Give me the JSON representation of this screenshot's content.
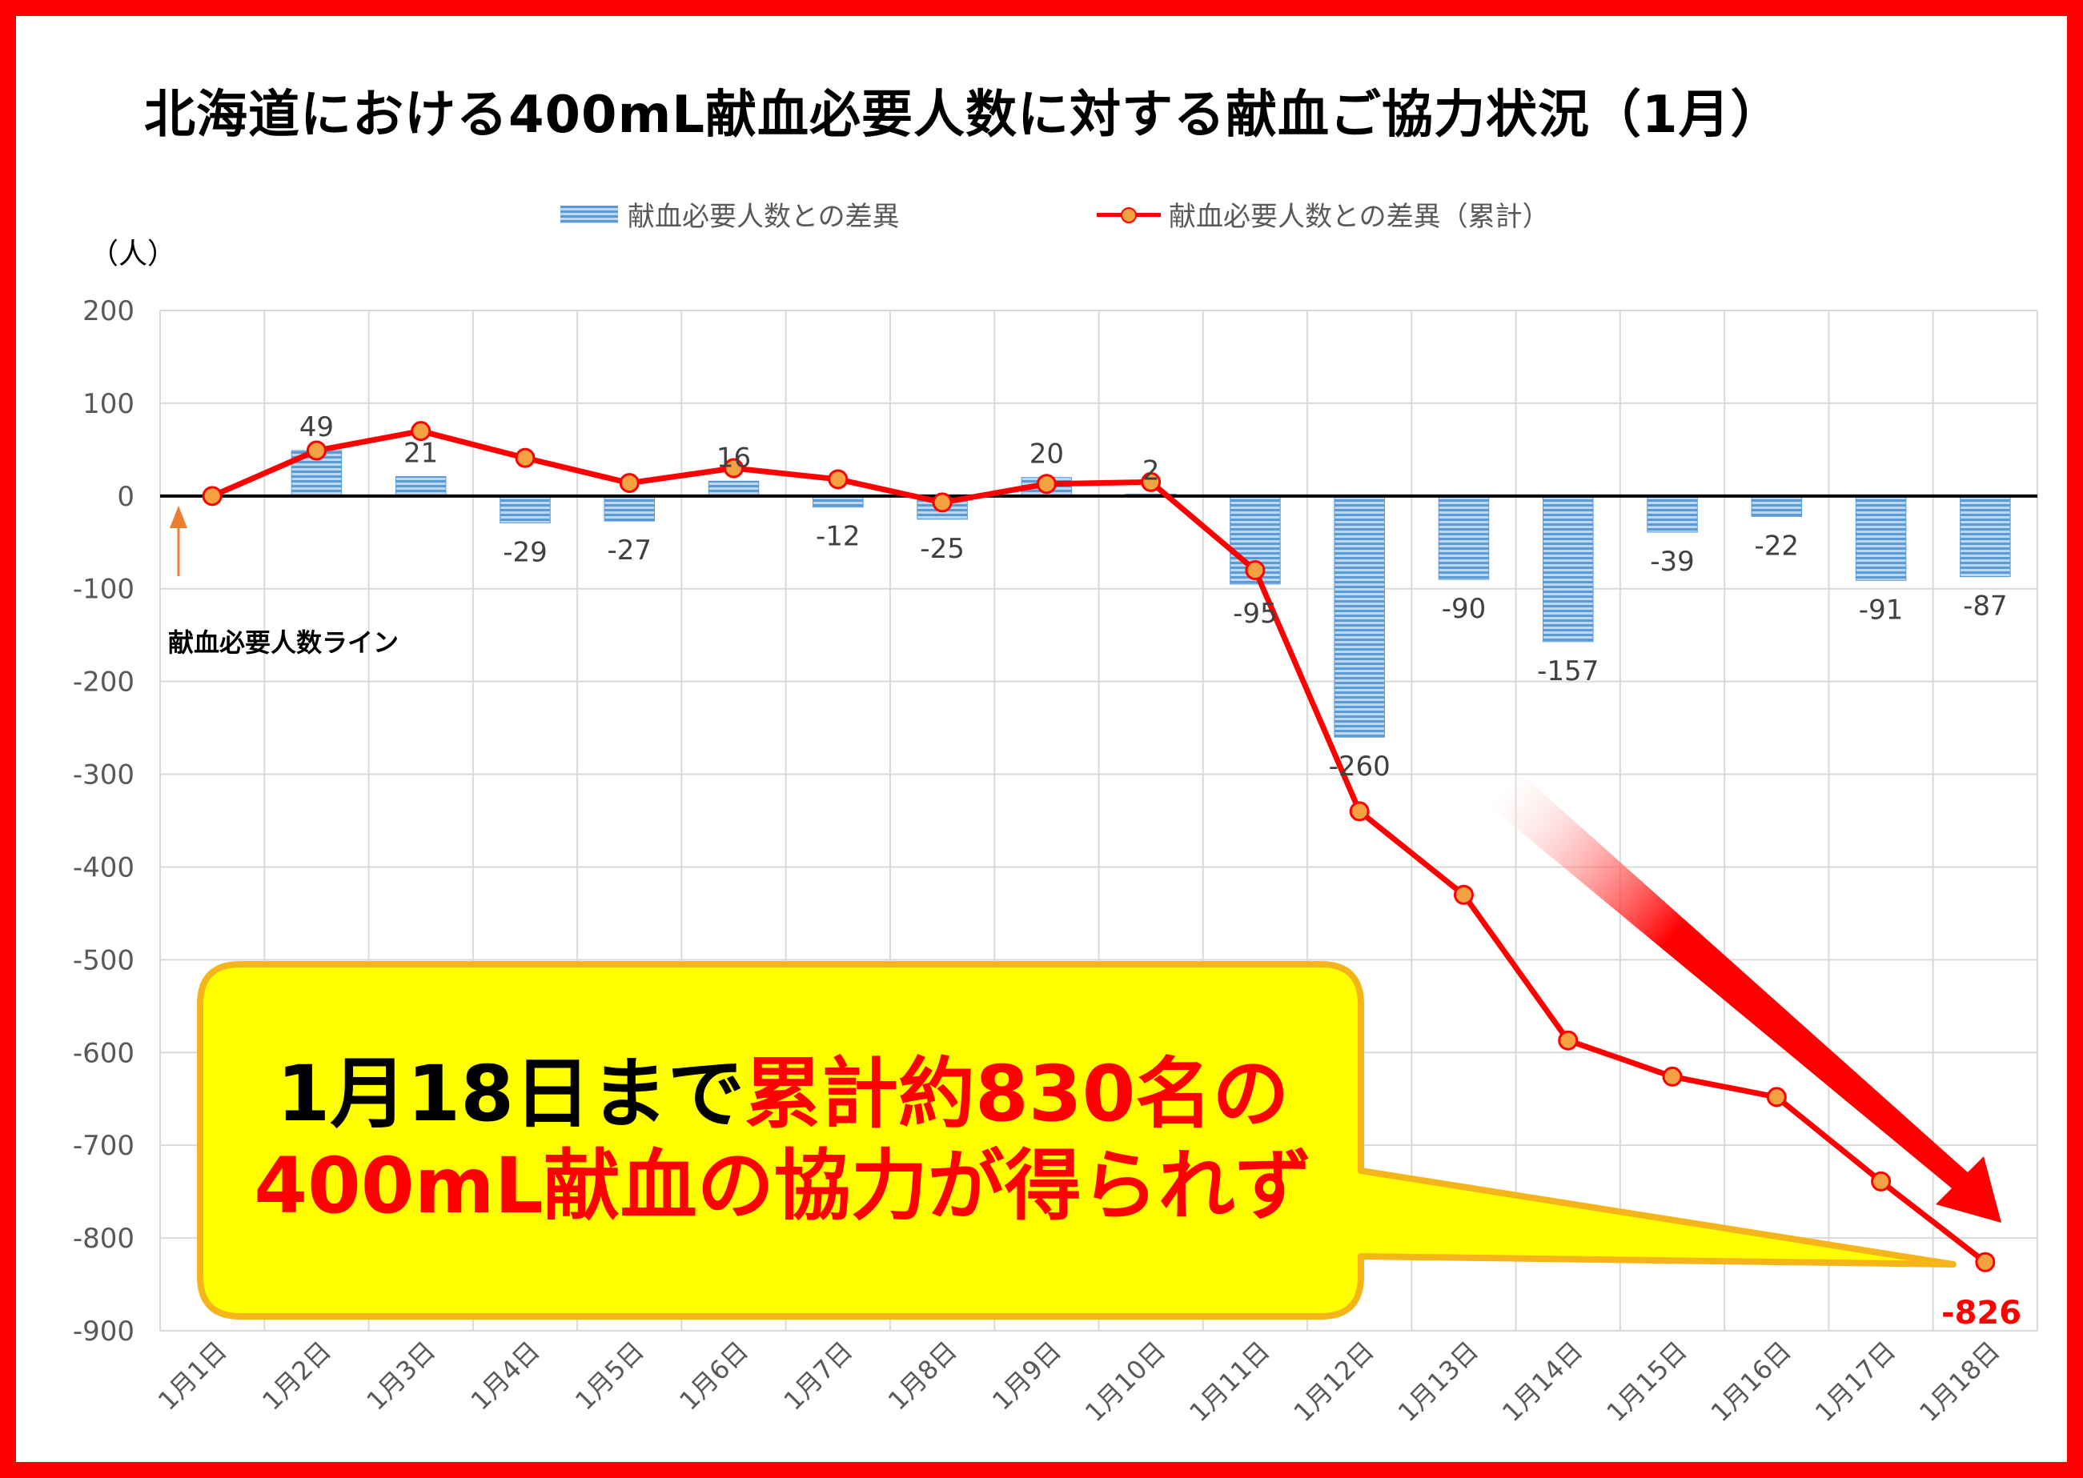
{
  "title": "北海道における400mL献血必要人数に対する献血ご協力状況（1月）",
  "unit_label": "（人）",
  "legend": {
    "bar": "献血必要人数との差異",
    "line": "献血必要人数との差異（累計）"
  },
  "reference_label": "献血必要人数ライン",
  "callout": {
    "line1_black": "1月18日まで",
    "line1_red": "累計約830名の",
    "line2_red": "400mL献血の協力が得られず"
  },
  "final_label": "-826",
  "colors": {
    "frame": "#ff0000",
    "bar": "#5b9bd5",
    "line": "#ff0000",
    "marker": "#f4a142",
    "callout_fill": "#ffff00",
    "callout_border": "#f4b41a"
  },
  "chart_data": {
    "type": "bar",
    "categories": [
      "1月1日",
      "1月2日",
      "1月3日",
      "1月4日",
      "1月5日",
      "1月6日",
      "1月7日",
      "1月8日",
      "1月9日",
      "1月10日",
      "1月11日",
      "1月12日",
      "1月13日",
      "1月14日",
      "1月15日",
      "1月16日",
      "1月17日",
      "1月18日"
    ],
    "series": [
      {
        "name": "献血必要人数との差異",
        "type": "bar",
        "values": [
          0,
          49,
          21,
          -29,
          -27,
          16,
          -12,
          -25,
          20,
          2,
          -95,
          -260,
          -90,
          -157,
          -39,
          -22,
          -91,
          -87
        ],
        "data_labels": [
          "",
          "49",
          "21",
          "-29",
          "-27",
          "16",
          "-12",
          "-25",
          "20",
          "2",
          "-95",
          "-260",
          "-90",
          "-157",
          "-39",
          "-22",
          "-91",
          "-87"
        ]
      },
      {
        "name": "献血必要人数との差異（累計）",
        "type": "line",
        "values": [
          0,
          49,
          70,
          41,
          14,
          30,
          18,
          -7,
          13,
          15,
          -80,
          -340,
          -430,
          -587,
          -626,
          -648,
          -739,
          -826
        ]
      }
    ],
    "ylabel": "（人）",
    "ylim": [
      -900,
      200
    ],
    "yticks": [
      200,
      100,
      0,
      -100,
      -200,
      -300,
      -400,
      -500,
      -600,
      -700,
      -800,
      -900
    ],
    "grid": true,
    "legend_position": "top"
  }
}
